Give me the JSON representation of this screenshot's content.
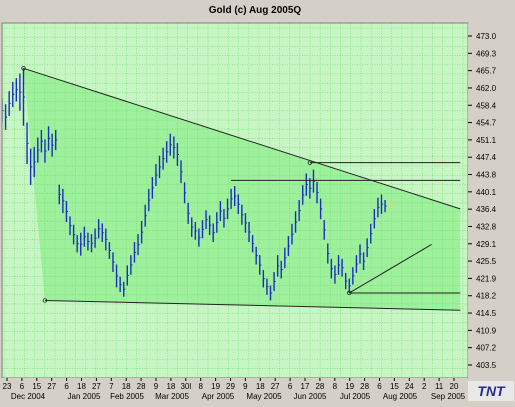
{
  "colors": {
    "window_bg": "#d4d0c8",
    "plot_bg": "#c8f5c4",
    "grid": "#66e066",
    "triangle_fill": "#90ee90",
    "bars": "#1a2fbf",
    "lines": "#222222",
    "axis_text": "#000000",
    "channel_ticks": "#f0d080"
  },
  "chart_data": {
    "type": "ohlc",
    "title": "Gold (c) Aug 2005Q",
    "watermark": "TNT",
    "ylim": [
      400.0,
      476.0
    ],
    "y_ticks": [
      "473.0",
      "469.3",
      "465.7",
      "462.0",
      "458.4",
      "454.7",
      "451.1",
      "447.4",
      "443.8",
      "440.1",
      "436.4",
      "432.8",
      "429.1",
      "425.5",
      "421.9",
      "418.2",
      "414.5",
      "410.9",
      "407.2",
      "403.5"
    ],
    "x_day_labels": [
      "23",
      "6",
      "15",
      "27",
      "6",
      "18",
      "27",
      "7",
      "18",
      "28",
      "9",
      "18",
      "30l",
      "8",
      "19",
      "29",
      "9",
      "18",
      "27",
      "6",
      "17",
      "28",
      "8",
      "19",
      "28",
      "6",
      "15",
      "24",
      "2",
      "11",
      "20"
    ],
    "x_month_labels": [
      "Dec 2004",
      "Jan 2005",
      "Feb 2005",
      "Mar 2005",
      "Apr 2005",
      "May 2005",
      "Jun 2005",
      "Jul 2005",
      "Aug 2005",
      "Sep 2005"
    ],
    "bars": [
      [
        0,
        459.8,
        454.7
      ],
      [
        1,
        458.6,
        453.1
      ],
      [
        2,
        461.4,
        456.1
      ],
      [
        3,
        463.4,
        458.0
      ],
      [
        4,
        464.2,
        459.2
      ],
      [
        5,
        465.2,
        457.2
      ],
      [
        6,
        466.3,
        454.0
      ],
      [
        7,
        454.7,
        445.8
      ],
      [
        8,
        449.1,
        441.3
      ],
      [
        9,
        449.5,
        443.0
      ],
      [
        10,
        451.5,
        446.1
      ],
      [
        11,
        453.1,
        448.3
      ],
      [
        12,
        451.1,
        446.1
      ],
      [
        13,
        453.9,
        448.7
      ],
      [
        14,
        452.3,
        447.4
      ],
      [
        15,
        453.1,
        448.8
      ],
      [
        16,
        441.4,
        437.2
      ],
      [
        17,
        440.5,
        435.3
      ],
      [
        18,
        437.9,
        433.4
      ],
      [
        19,
        434.6,
        430.6
      ],
      [
        20,
        432.8,
        428.6
      ],
      [
        21,
        430.6,
        426.9
      ],
      [
        22,
        431.1,
        426.2
      ],
      [
        23,
        432.4,
        428.1
      ],
      [
        24,
        431.1,
        427.3
      ],
      [
        25,
        430.8,
        426.9
      ],
      [
        26,
        432.0,
        427.9
      ],
      [
        27,
        434.0,
        429.9
      ],
      [
        28,
        433.1,
        429.1
      ],
      [
        29,
        432.0,
        427.3
      ],
      [
        30,
        429.1,
        425.5
      ],
      [
        31,
        426.9,
        422.7
      ],
      [
        32,
        424.3,
        419.4
      ],
      [
        33,
        421.7,
        418.4
      ],
      [
        34,
        420.6,
        417.4
      ],
      [
        35,
        424.1,
        419.8
      ],
      [
        36,
        426.3,
        422.1
      ],
      [
        37,
        429.1,
        424.7
      ],
      [
        38,
        430.8,
        426.3
      ],
      [
        39,
        433.6,
        428.8
      ],
      [
        40,
        437.1,
        432.4
      ],
      [
        41,
        440.5,
        435.7
      ],
      [
        42,
        443.0,
        438.4
      ],
      [
        43,
        445.8,
        441.1
      ],
      [
        44,
        447.6,
        442.8
      ],
      [
        45,
        449.3,
        444.6
      ],
      [
        46,
        450.7,
        446.1
      ],
      [
        47,
        452.3,
        447.6
      ],
      [
        48,
        451.7,
        447.0
      ],
      [
        49,
        450.3,
        445.4
      ],
      [
        50,
        446.6,
        441.7
      ],
      [
        51,
        441.9,
        437.4
      ],
      [
        52,
        437.5,
        433.0
      ],
      [
        53,
        434.4,
        430.2
      ],
      [
        54,
        433.4,
        429.6
      ],
      [
        55,
        432.0,
        428.1
      ],
      [
        56,
        433.8,
        429.9
      ],
      [
        57,
        435.9,
        431.9
      ],
      [
        58,
        434.8,
        430.6
      ],
      [
        59,
        433.1,
        429.1
      ],
      [
        60,
        435.5,
        431.1
      ],
      [
        61,
        437.9,
        433.6
      ],
      [
        62,
        436.2,
        432.2
      ],
      [
        63,
        438.4,
        434.0
      ],
      [
        64,
        440.5,
        436.2
      ],
      [
        65,
        441.1,
        436.8
      ],
      [
        66,
        439.3,
        435.1
      ],
      [
        67,
        437.1,
        432.8
      ],
      [
        68,
        435.3,
        431.1
      ],
      [
        69,
        433.4,
        429.1
      ],
      [
        70,
        430.6,
        426.9
      ],
      [
        71,
        428.1,
        424.3
      ],
      [
        72,
        426.3,
        422.1
      ],
      [
        73,
        423.1,
        419.4
      ],
      [
        74,
        421.3,
        417.8
      ],
      [
        75,
        419.8,
        416.6
      ],
      [
        76,
        422.7,
        418.6
      ],
      [
        77,
        426.3,
        421.7
      ],
      [
        78,
        425.1,
        421.3
      ],
      [
        79,
        427.9,
        423.5
      ],
      [
        80,
        430.4,
        426.1
      ],
      [
        81,
        433.0,
        428.6
      ],
      [
        82,
        435.7,
        431.1
      ],
      [
        83,
        438.1,
        433.6
      ],
      [
        84,
        441.3,
        437.1
      ],
      [
        85,
        443.8,
        439.0
      ],
      [
        86,
        442.8,
        438.4
      ],
      [
        87,
        444.6,
        439.7
      ],
      [
        88,
        442.0,
        437.4
      ],
      [
        89,
        438.4,
        434.0
      ],
      [
        90,
        433.8,
        429.6
      ],
      [
        91,
        428.8,
        424.5
      ],
      [
        92,
        425.5,
        421.3
      ],
      [
        93,
        424.1,
        420.2
      ],
      [
        94,
        426.3,
        422.1
      ],
      [
        95,
        425.5,
        421.7
      ],
      [
        96,
        422.5,
        419.0
      ],
      [
        97,
        421.3,
        418.2
      ],
      [
        98,
        423.7,
        420.0
      ],
      [
        99,
        426.3,
        422.5
      ],
      [
        100,
        428.6,
        424.5
      ],
      [
        101,
        426.9,
        423.1
      ],
      [
        102,
        429.9,
        425.9
      ],
      [
        103,
        433.0,
        428.8
      ],
      [
        104,
        436.2,
        432.0
      ],
      [
        105,
        438.6,
        434.4
      ],
      [
        106,
        439.3,
        435.1
      ],
      [
        107,
        438.1,
        435.5
      ]
    ],
    "trend_lines": [
      {
        "from": [
          6,
          466.3
        ],
        "to": [
          128,
          436.2
        ]
      },
      {
        "from": [
          12,
          416.6
        ],
        "to": [
          128,
          414.5
        ]
      },
      {
        "from": [
          97,
          418.2
        ],
        "to": [
          120,
          428.6
        ]
      }
    ],
    "horizontal_levels": [
      {
        "value": 446.1,
        "x_from": 86,
        "x_to": 128
      },
      {
        "value": 442.3,
        "x_from": 64,
        "x_to": 128
      },
      {
        "value": 418.2,
        "x_from": 97,
        "x_to": 128
      }
    ],
    "pivot_points": [
      [
        6,
        466.3
      ],
      [
        12,
        416.6
      ],
      [
        86,
        446.1
      ],
      [
        97,
        418.2
      ]
    ],
    "x_range": [
      0,
      128
    ]
  }
}
